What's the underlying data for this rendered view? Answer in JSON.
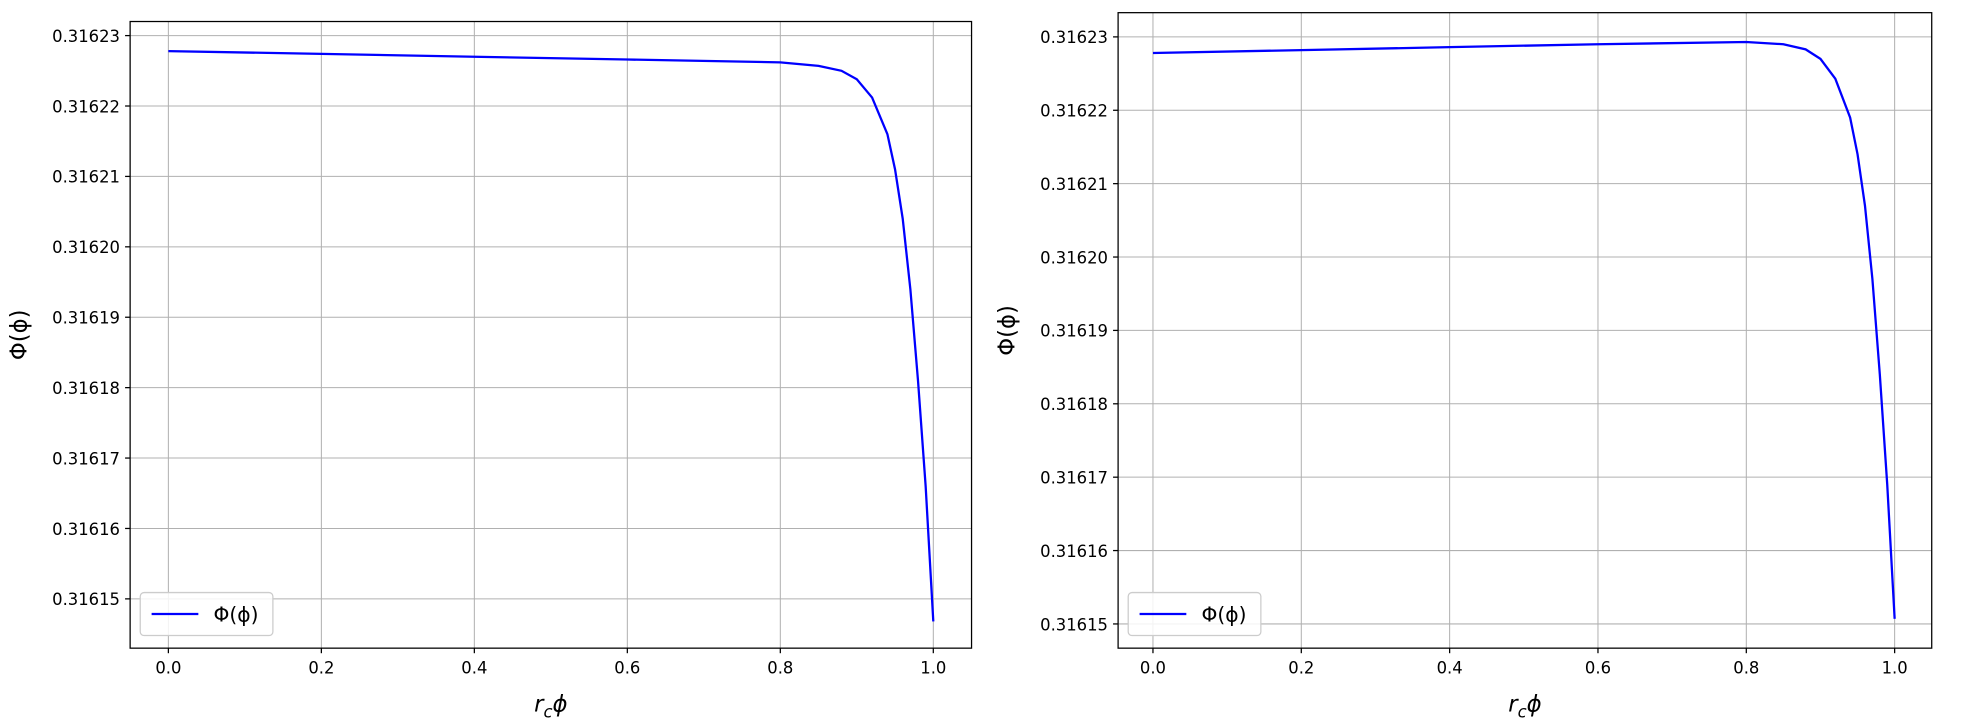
{
  "chart_data": [
    {
      "type": "line",
      "xlabel": "rcϕ",
      "ylabel": "Φ(ϕ)",
      "grid": true,
      "legend": "lower left",
      "x": [
        0,
        0.2,
        0.4,
        0.6,
        0.8,
        0.85,
        0.88,
        0.9,
        0.92,
        0.94,
        0.95,
        0.96,
        0.97,
        0.98,
        0.99,
        1.0
      ],
      "series": [
        {
          "name": "Φ(ϕ)",
          "color": "#0000ff",
          "values": [
            0.3162278,
            0.3162274,
            0.316227,
            0.3162266,
            0.3162262,
            0.3162257,
            0.316225,
            0.3162238,
            0.3162212,
            0.316216,
            0.316211,
            0.316204,
            0.316194,
            0.316181,
            0.316166,
            0.3161468
          ]
        }
      ],
      "xlim": [
        -0.05,
        1.05
      ],
      "xticks": [
        {
          "value": 0,
          "label": "0.0"
        },
        0.2,
        0.4,
        0.6,
        0.8,
        {
          "value": 1,
          "label": "1.0"
        }
      ],
      "ylim": [
        0.316143,
        0.316232
      ],
      "yticks": [
        0.31615,
        0.31616,
        0.31617,
        0.31618,
        0.31619,
        {
          "value": 0.3162,
          "label": "0.31620"
        },
        0.31621,
        0.31622,
        0.31623
      ]
    },
    {
      "type": "line",
      "xlabel": "rcϕ",
      "ylabel": "Φ(ϕ)",
      "grid": true,
      "legend": "lower left",
      "x": [
        0,
        0.2,
        0.4,
        0.6,
        0.8,
        0.85,
        0.88,
        0.9,
        0.92,
        0.94,
        0.95,
        0.96,
        0.97,
        0.98,
        0.99,
        1.0
      ],
      "series": [
        {
          "name": "Φ(ϕ)",
          "color": "#0000ff",
          "values": [
            0.3162278,
            0.3162282,
            0.3162286,
            0.316229,
            0.3162293,
            0.316229,
            0.3162283,
            0.316227,
            0.3162243,
            0.316219,
            0.316214,
            0.316207,
            0.316197,
            0.316184,
            0.316169,
            0.3161507
          ]
        }
      ],
      "xlim": [
        -0.047,
        1.05
      ],
      "xticks": [
        {
          "value": 0,
          "label": "0.0"
        },
        0.2,
        0.4,
        0.6,
        0.8,
        {
          "value": 1,
          "label": "1.0"
        }
      ],
      "ylim": [
        0.3161467,
        0.3162333
      ],
      "yticks": [
        0.31615,
        0.31616,
        0.31617,
        0.31618,
        0.31619,
        {
          "value": 0.3162,
          "label": "0.31620"
        },
        0.31621,
        0.31622,
        0.31623
      ]
    }
  ]
}
